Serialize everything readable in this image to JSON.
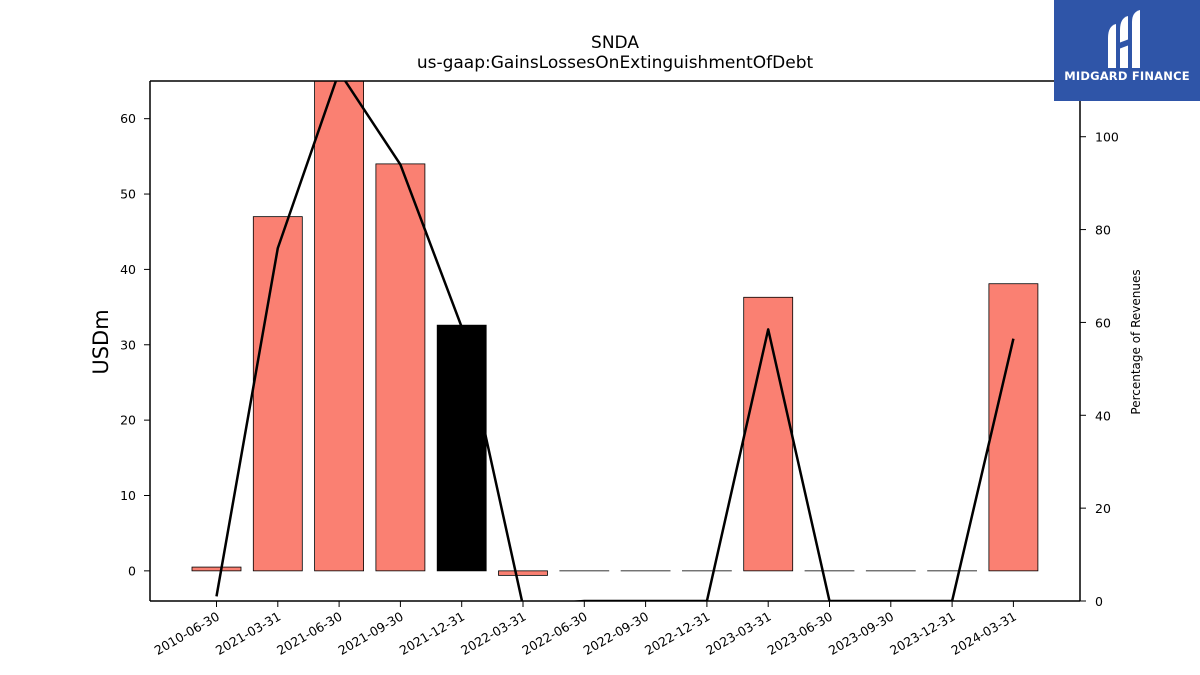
{
  "chart_data": {
    "type": "bar",
    "title": "SNDA",
    "subtitle": "us-gaap:GainsLossesOnExtinguishmentOfDebt",
    "ylabel": "USDm",
    "y2label": "Percentage of Revenues",
    "categories": [
      "2010-06-30",
      "2021-03-31",
      "2021-06-30",
      "2021-09-30",
      "2021-12-31",
      "2022-03-31",
      "2022-06-30",
      "2022-09-30",
      "2022-12-31",
      "2023-03-31",
      "2023-06-30",
      "2023-09-30",
      "2023-12-31",
      "2024-03-31"
    ],
    "values": [
      0.5,
      47,
      65,
      54,
      32.6,
      -0.6,
      0,
      0,
      0,
      36.3,
      0,
      0,
      0,
      38.1
    ],
    "bar_colors": [
      "#fa8072",
      "#fa8072",
      "#fa8072",
      "#fa8072",
      "#000000",
      "#fa8072",
      "#fa8072",
      "#fa8072",
      "#fa8072",
      "#fa8072",
      "#fa8072",
      "#fa8072",
      "#fa8072",
      "#fa8072"
    ],
    "line_values": [
      1,
      76,
      114,
      94,
      59,
      -1,
      0,
      0,
      0,
      58.5,
      0,
      0,
      0,
      56.5
    ],
    "line_color": "#000000",
    "ylim": [
      -4,
      65
    ],
    "yticks": [
      0,
      10,
      20,
      30,
      40,
      50,
      60
    ],
    "y2lim": [
      0,
      112
    ],
    "y2ticks": [
      0,
      20,
      40,
      60,
      80,
      100
    ],
    "grid": false
  },
  "logo": {
    "text": "MIDGARD FINANCE",
    "color": "#2f55a8"
  }
}
